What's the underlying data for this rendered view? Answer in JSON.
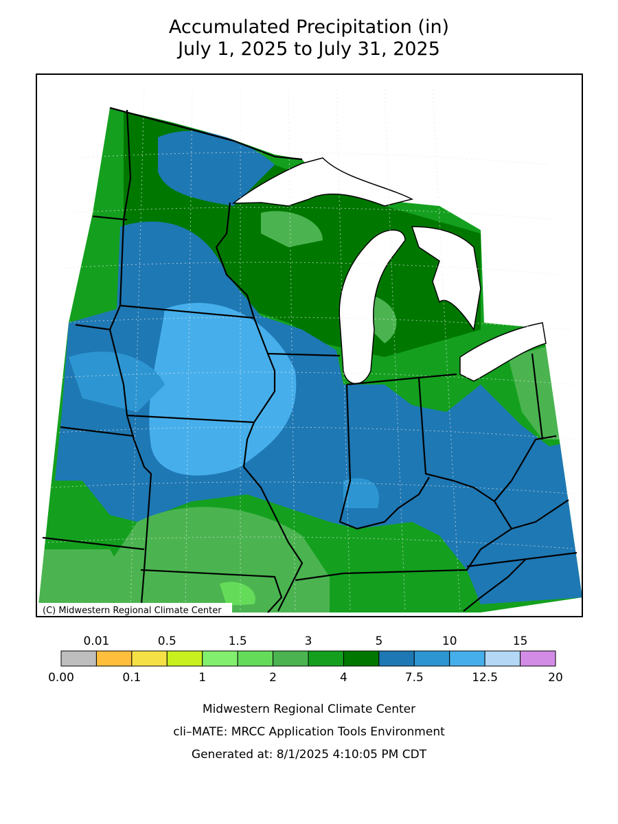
{
  "header": {
    "title_line1": "Accumulated Precipitation (in)",
    "title_line2": "July 1, 2025 to July 31, 2025"
  },
  "map": {
    "credit": "(C) Midwestern Regional Climate Center"
  },
  "legend": {
    "colors": [
      "#bebebe",
      "#ffbe3c",
      "#f5e146",
      "#c8f01e",
      "#82f06e",
      "#64dc5a",
      "#4bb450",
      "#14a01e",
      "#007800",
      "#1e78b4",
      "#2d96d2",
      "#46afeb",
      "#b4d7f5",
      "#d28ce6"
    ],
    "labels": [
      "0.00",
      "0.01",
      "0.1",
      "0.5",
      "1",
      "1.5",
      "2",
      "3",
      "4",
      "5",
      "7.5",
      "10",
      "12.5",
      "15",
      "20"
    ]
  },
  "footer": {
    "line1": "Midwestern Regional Climate Center",
    "line2": "cli–MATE: MRCC Application Tools Environment",
    "line3": "Generated at: 8/1/2025 4:10:05 PM CDT"
  }
}
